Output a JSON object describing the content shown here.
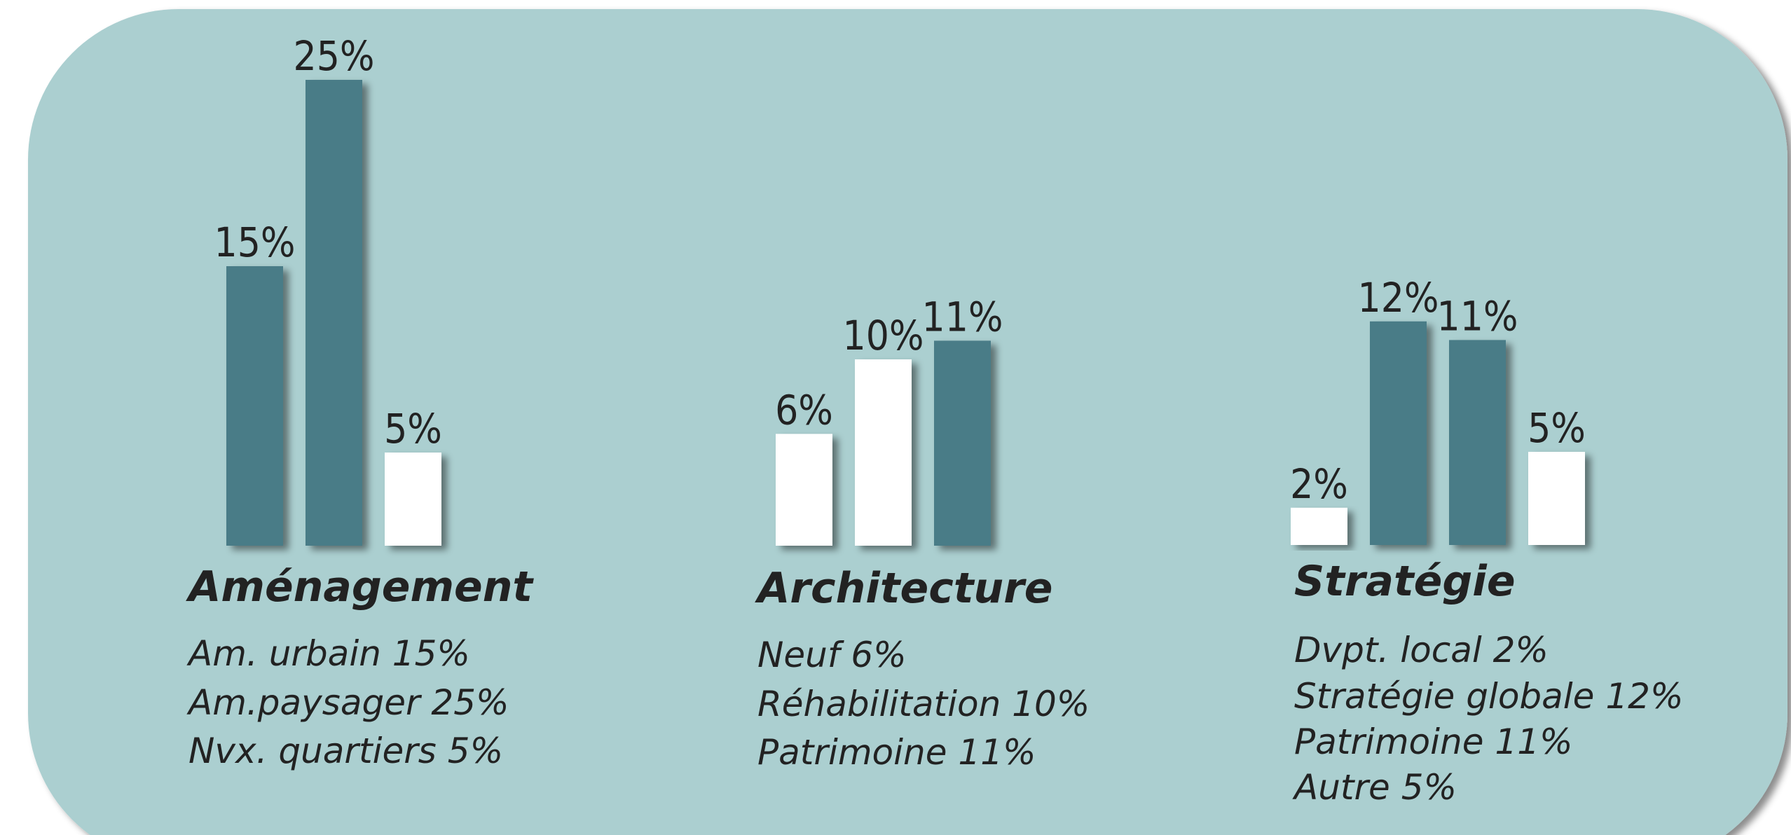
{
  "chart_data": [
    {
      "type": "bar",
      "title": "Aménagement",
      "categories": [
        "Am. urbain  15%",
        "Am.paysager 25%",
        "Nvx. quartiers 5%"
      ],
      "values": [
        15,
        25,
        5
      ],
      "value_labels": [
        "15%",
        "25%",
        "5%"
      ],
      "colors": [
        "#4a7b87",
        "#4a7b87",
        "#ffffff"
      ]
    },
    {
      "type": "bar",
      "title": "Architecture",
      "categories": [
        "Neuf  6%",
        "Réhabilitation 10%",
        "Patrimoine 11%"
      ],
      "values": [
        6,
        10,
        11
      ],
      "value_labels": [
        "6%",
        "10%",
        "11%"
      ],
      "colors": [
        "#ffffff",
        "#ffffff",
        "#4a7b87"
      ]
    },
    {
      "type": "bar",
      "title": "Stratégie",
      "categories": [
        "Dvpt. local 2%",
        "Stratégie globale 12%",
        "Patrimoine 11%",
        "Autre 5%"
      ],
      "values": [
        2,
        12,
        11,
        5
      ],
      "value_labels": [
        "2%",
        "12%",
        "11%",
        "5%"
      ],
      "colors": [
        "#ffffff",
        "#4a7b87",
        "#4a7b87",
        "#ffffff"
      ]
    }
  ]
}
